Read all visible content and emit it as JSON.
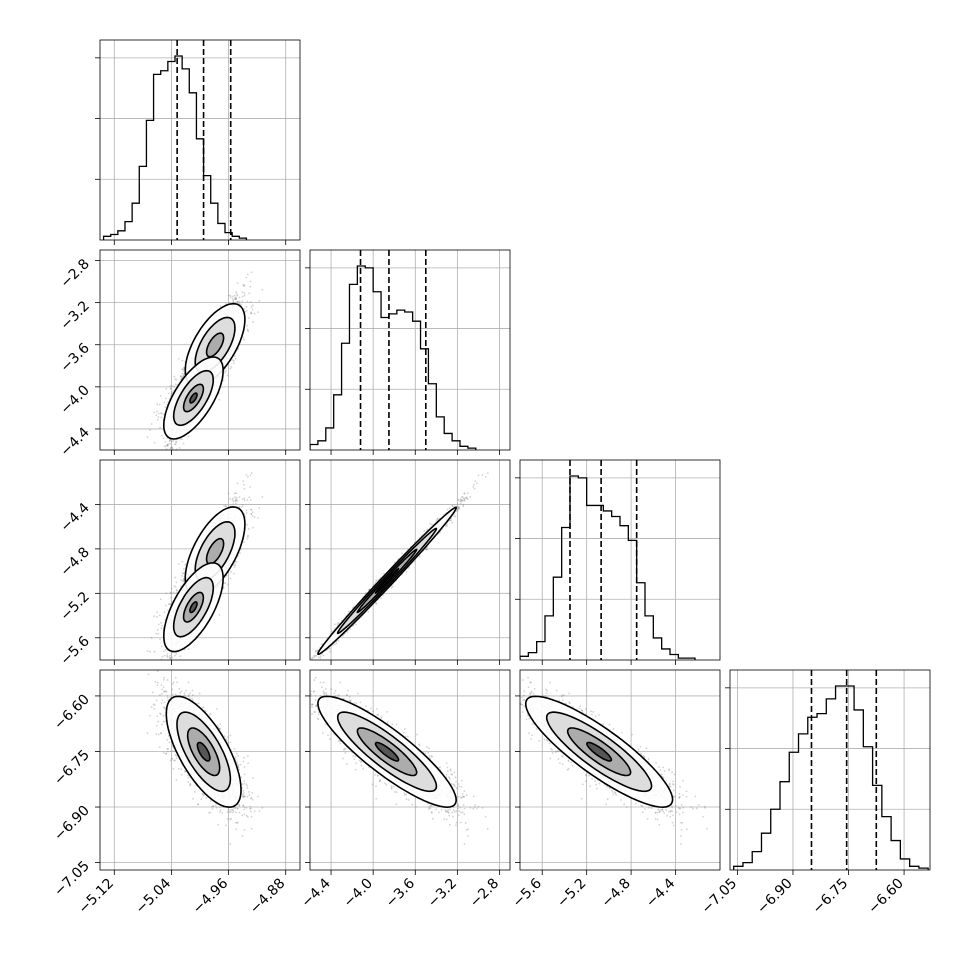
{
  "chart_data": {
    "type": "corner",
    "title": "",
    "parameters": [
      "",
      "",
      "",
      ""
    ],
    "grid": true,
    "colors": {
      "line": "#000000",
      "grid": "#b0b0b0",
      "points": "#7f7f7f",
      "background": "#ffffff"
    },
    "axes": [
      {
        "range": [
          -5.14,
          -4.86
        ],
        "ticks": [
          "-5.12",
          "-5.04",
          "-4.96",
          "-4.88"
        ],
        "tick_values": [
          -5.12,
          -5.04,
          -4.96,
          -4.88
        ]
      },
      {
        "range": [
          -4.6,
          -2.7
        ],
        "ticks": [
          "-4.4",
          "-4.0",
          "-3.6",
          "-3.2",
          "-2.8"
        ],
        "tick_values": [
          -4.4,
          -4.0,
          -3.6,
          -3.2,
          -2.8
        ]
      },
      {
        "range": [
          -5.8,
          -4.0
        ],
        "ticks": [
          "-5.6",
          "-5.2",
          "-4.8",
          "-4.4"
        ],
        "tick_values": [
          -5.6,
          -5.2,
          -4.8,
          -4.4
        ]
      },
      {
        "range": [
          -7.07,
          -6.53
        ],
        "ticks": [
          "-7.05",
          "-6.90",
          "-6.75",
          "-6.60"
        ],
        "tick_values": [
          -7.05,
          -6.9,
          -6.75,
          -6.6
        ]
      }
    ],
    "quantiles": [
      [
        -5.032,
        -4.995,
        -4.957
      ],
      [
        -4.12,
        -3.85,
        -3.5
      ],
      [
        -5.35,
        -5.07,
        -4.75
      ],
      [
        -6.85,
        -6.755,
        -6.675
      ]
    ],
    "histograms": [
      {
        "bin_start": -5.135,
        "bin_width": 0.01,
        "counts": [
          2,
          3,
          5,
          10,
          20,
          40,
          65,
          90,
          92,
          97,
          100,
          93,
          80,
          55,
          35,
          20,
          9,
          4,
          2,
          1
        ]
      },
      {
        "bin_start": -4.6,
        "bin_width": 0.075,
        "counts": [
          3,
          5,
          12,
          30,
          58,
          90,
          100,
          99,
          86,
          72,
          74,
          76,
          75,
          70,
          55,
          36,
          18,
          9,
          5,
          2,
          1
        ]
      },
      {
        "bin_start": -5.8,
        "bin_width": 0.075,
        "counts": [
          2,
          4,
          10,
          24,
          45,
          72,
          100,
          99,
          84,
          84,
          81,
          78,
          73,
          65,
          42,
          24,
          12,
          6,
          3,
          1,
          1
        ]
      },
      {
        "bin_start": -7.06,
        "bin_width": 0.025,
        "counts": [
          2,
          4,
          10,
          20,
          33,
          48,
          64,
          74,
          83,
          85,
          93,
          100,
          100,
          87,
          67,
          46,
          29,
          16,
          6,
          2,
          1
        ]
      }
    ]
  }
}
